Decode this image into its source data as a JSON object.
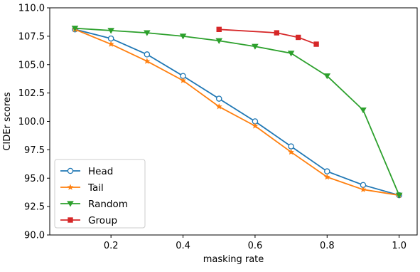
{
  "chart_data": {
    "type": "line",
    "title": "",
    "xlabel": "masking rate",
    "ylabel": "CIDEr scores",
    "xlim": [
      0.03,
      1.05
    ],
    "ylim": [
      90.0,
      110.0
    ],
    "xticks": [
      0.2,
      0.4,
      0.6,
      0.8,
      1.0
    ],
    "xtick_labels": [
      "0.2",
      "0.4",
      "0.6",
      "0.8",
      "1.0"
    ],
    "yticks": [
      90.0,
      92.5,
      95.0,
      97.5,
      100.0,
      102.5,
      105.0,
      107.5,
      110.0
    ],
    "ytick_labels": [
      "90.0",
      "92.5",
      "95.0",
      "97.5",
      "100.0",
      "102.5",
      "105.0",
      "107.5",
      "110.0"
    ],
    "grid": false,
    "legend_position": "lower-left",
    "series": [
      {
        "name": "Head",
        "color": "#1f77b4",
        "marker": "open-circle",
        "x": [
          0.1,
          0.2,
          0.3,
          0.4,
          0.5,
          0.6,
          0.7,
          0.8,
          0.9,
          1.0
        ],
        "values": [
          108.1,
          107.3,
          105.9,
          104.0,
          102.0,
          100.0,
          97.8,
          95.6,
          94.4,
          93.5
        ]
      },
      {
        "name": "Tail",
        "color": "#ff7f0e",
        "marker": "star",
        "x": [
          0.1,
          0.2,
          0.3,
          0.4,
          0.5,
          0.6,
          0.7,
          0.8,
          0.9,
          1.0
        ],
        "values": [
          108.1,
          106.8,
          105.3,
          103.6,
          101.3,
          99.6,
          97.3,
          95.1,
          94.0,
          93.5
        ]
      },
      {
        "name": "Random",
        "color": "#2ca02c",
        "marker": "triangle-down",
        "x": [
          0.1,
          0.2,
          0.3,
          0.4,
          0.5,
          0.6,
          0.7,
          0.8,
          0.9,
          1.0
        ],
        "values": [
          108.2,
          108.0,
          107.8,
          107.5,
          107.1,
          106.6,
          106.0,
          104.0,
          101.0,
          93.5
        ]
      },
      {
        "name": "Group",
        "color": "#d62728",
        "marker": "square",
        "x": [
          0.5,
          0.66,
          0.72,
          0.77
        ],
        "values": [
          108.1,
          107.8,
          107.4,
          106.8
        ]
      }
    ]
  }
}
